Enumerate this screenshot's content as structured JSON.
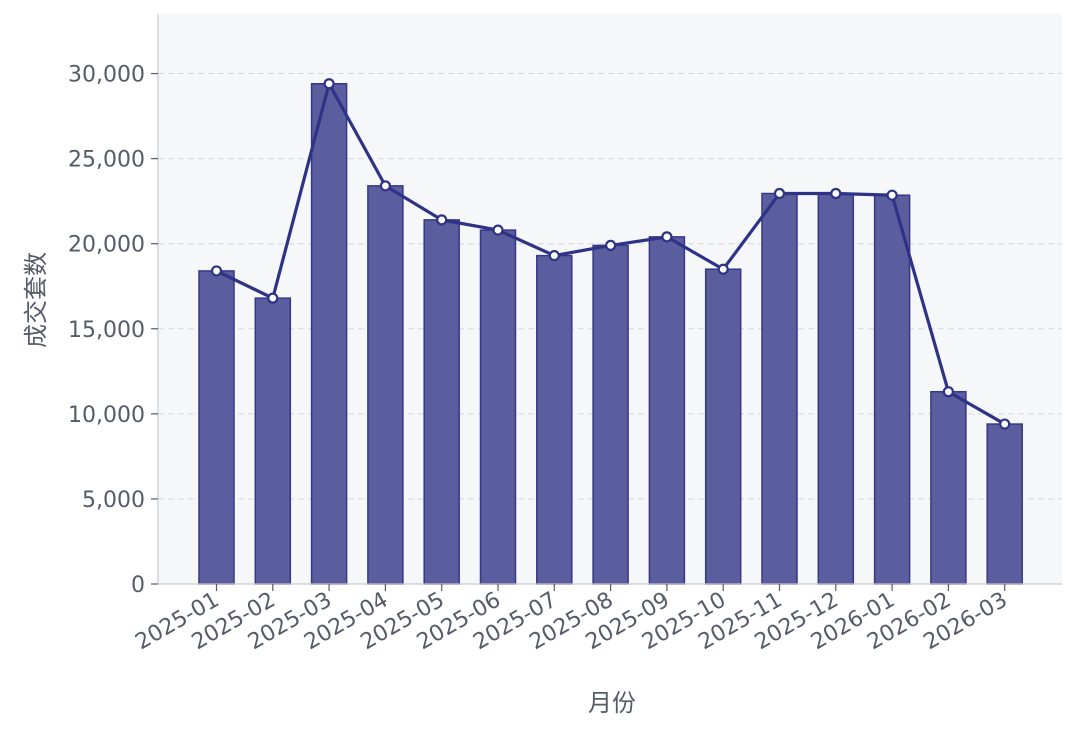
{
  "chart_data": {
    "type": "bar",
    "categories": [
      "2025-01",
      "2025-02",
      "2025-03",
      "2025-04",
      "2025-05",
      "2025-06",
      "2025-07",
      "2025-08",
      "2025-09",
      "2025-10",
      "2025-11",
      "2025-12",
      "2026-01",
      "2026-02",
      "2026-03"
    ],
    "values": [
      18400,
      16800,
      29400,
      23400,
      21400,
      20800,
      19300,
      19900,
      20400,
      18500,
      22950,
      22950,
      22850,
      11300,
      9400
    ],
    "overlay_line": {
      "type": "line",
      "values": [
        18400,
        16800,
        29400,
        23400,
        21400,
        20800,
        19300,
        19900,
        20400,
        18500,
        22950,
        22950,
        22850,
        11300,
        9400
      ]
    },
    "title": "",
    "xlabel": "月份",
    "ylabel": "成交套数",
    "ylim": [
      0,
      33500
    ],
    "yticks": [
      0,
      5000,
      10000,
      15000,
      20000,
      25000,
      30000
    ],
    "ytick_labels": [
      "0",
      "5,000",
      "10,000",
      "15,000",
      "20,000",
      "25,000",
      "30,000"
    ],
    "grid": "horizontal-dashed",
    "colors": {
      "bar_fill": "#5a5e9e",
      "bar_stroke": "#343985",
      "line": "#2e3386",
      "plot_background": "#f6f7f9",
      "grid": "#d5d8de",
      "axis_text": "#555c68"
    }
  }
}
